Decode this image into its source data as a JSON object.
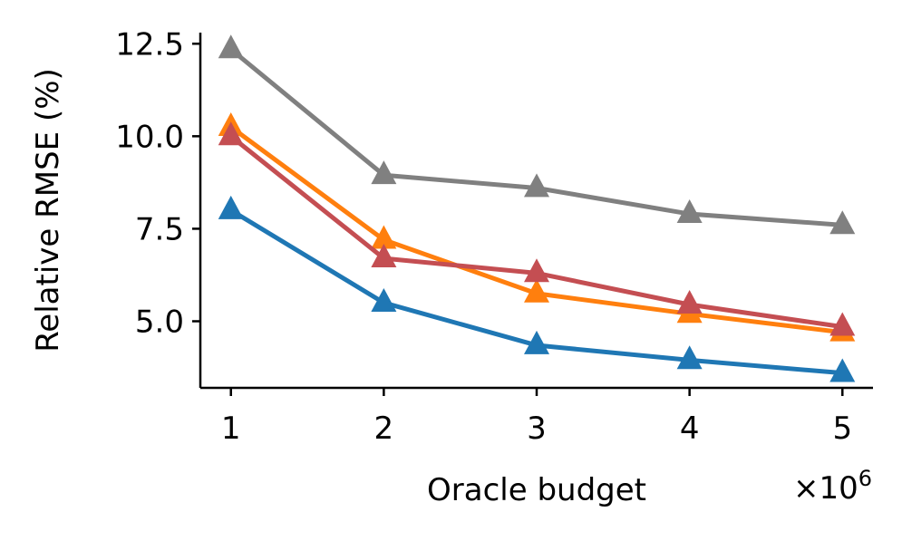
{
  "chart_data": {
    "type": "line",
    "xlabel": "Oracle budget",
    "ylabel": "Relative RMSE (%)",
    "x_multiplier_label": "×10",
    "x_multiplier_exponent": "6",
    "x": [
      1,
      2,
      3,
      4,
      5
    ],
    "xlim": [
      0.8,
      5.2
    ],
    "ylim": [
      3.2,
      12.8
    ],
    "xticks": [
      1,
      2,
      3,
      4,
      5
    ],
    "xtick_labels": [
      "1",
      "2",
      "3",
      "4",
      "5"
    ],
    "yticks": [
      5.0,
      7.5,
      10.0,
      12.5
    ],
    "ytick_labels": [
      "5.0",
      "7.5",
      "10.0",
      "12.5"
    ],
    "grid": false,
    "marker": "triangle",
    "series": [
      {
        "color": "#808080",
        "values": [
          12.35,
          8.95,
          8.6,
          7.9,
          7.6
        ]
      },
      {
        "color": "#ff7f0e",
        "values": [
          10.25,
          7.2,
          5.75,
          5.2,
          4.7
        ]
      },
      {
        "color": "#c44e52",
        "values": [
          10.0,
          6.7,
          6.3,
          5.45,
          4.85
        ]
      },
      {
        "color": "#1f77b4",
        "values": [
          8.0,
          5.5,
          4.35,
          3.95,
          3.6
        ]
      }
    ]
  }
}
